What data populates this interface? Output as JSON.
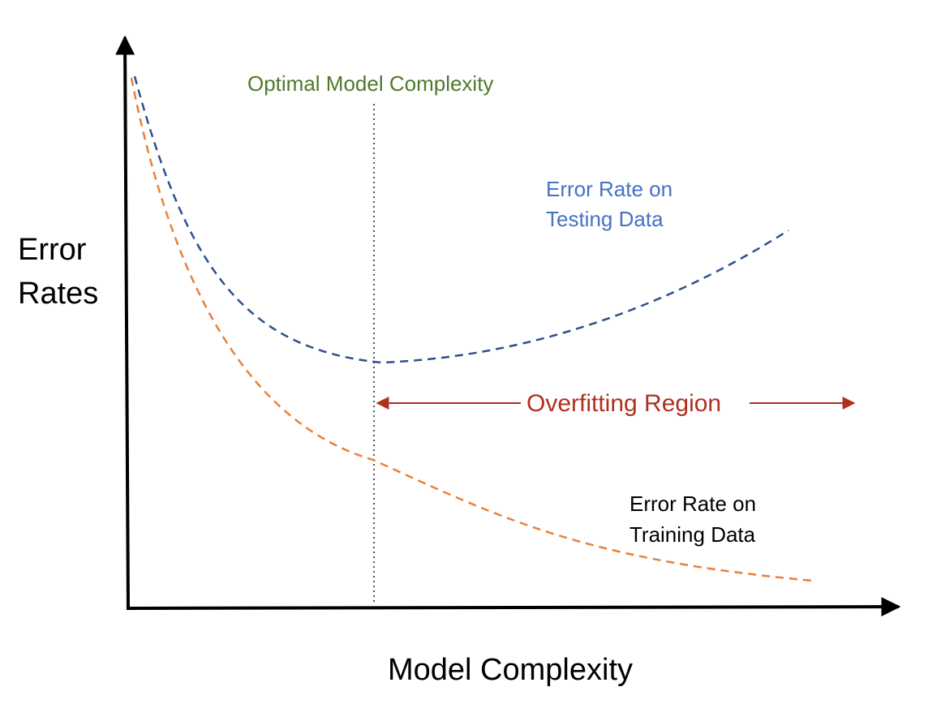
{
  "optimal_label": "Optimal Model Complexity",
  "testing_label": {
    "line1": "Error Rate on",
    "line2": "Testing Data"
  },
  "training_label": {
    "line1": "Error Rate on",
    "line2": "Training Data"
  },
  "overfitting_label": "Overfitting Region",
  "y_axis_label": {
    "line1": "Error",
    "line2": "Rates"
  },
  "x_axis_label": "Model Complexity",
  "colors": {
    "axis": "#000000",
    "testing_curve": "#2f4f8f",
    "training_curve": "#e8803a",
    "optimal_label": "#4e7a2c",
    "optimal_line": "#555555",
    "testing_label": "#4472c4",
    "training_label": "#000000",
    "overfitting": "#b03020"
  }
}
